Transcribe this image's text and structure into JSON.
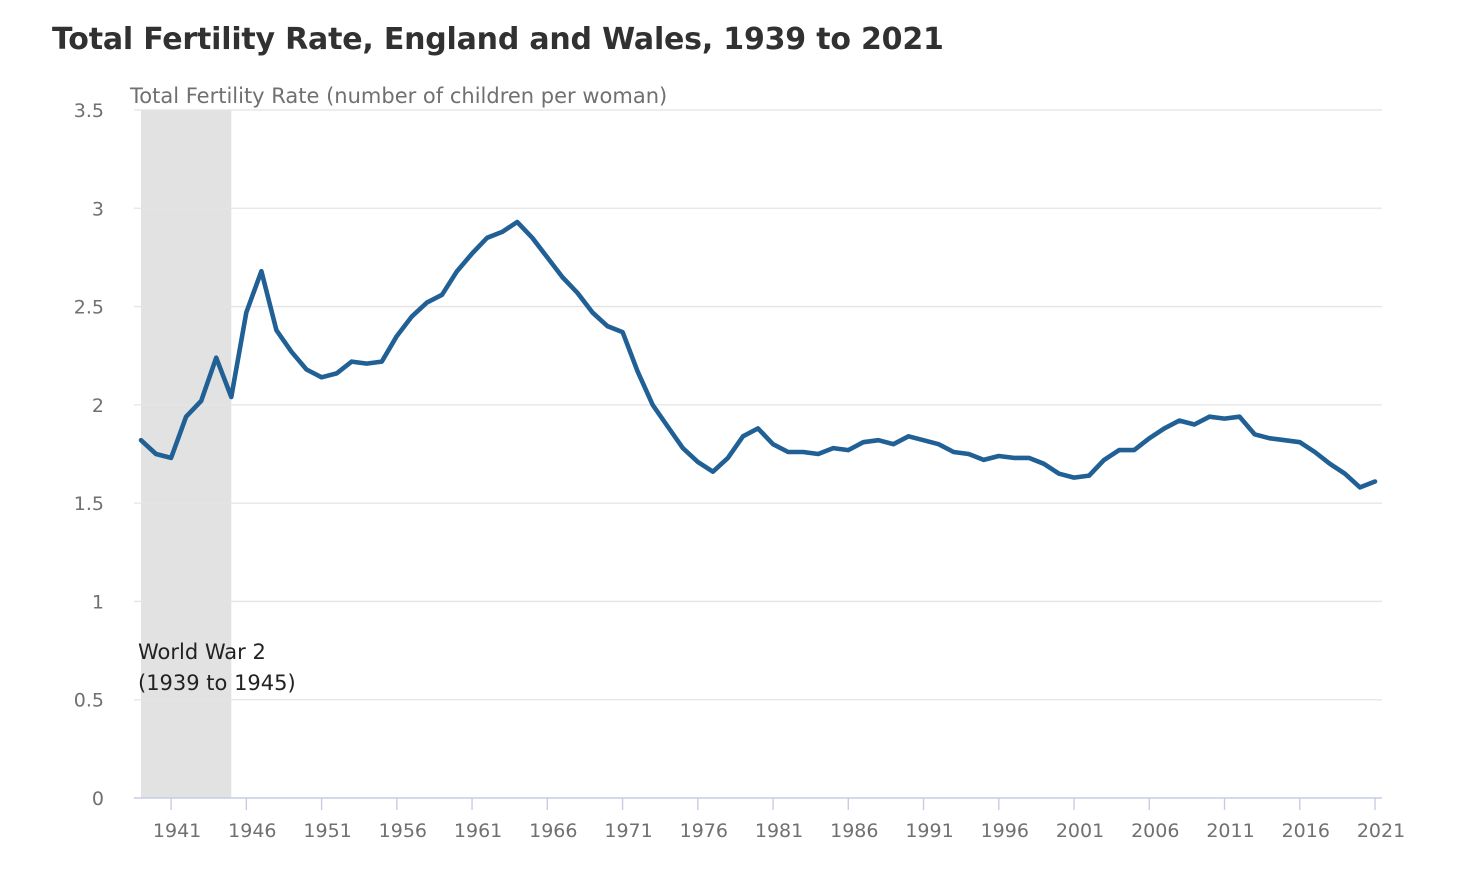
{
  "title": "Total Fertility Rate, England and Wales, 1939 to 2021",
  "chart_data": {
    "type": "line",
    "title": "Total Fertility Rate, England and Wales, 1939 to 2021",
    "ylabel": "Total Fertility Rate (number of children per woman)",
    "xlabel": "",
    "ylim": [
      0,
      3.5
    ],
    "xlim": [
      1939,
      2021
    ],
    "yticks": [
      "0",
      "0.5",
      "1",
      "1.5",
      "2",
      "2.5",
      "3",
      "3.5"
    ],
    "xticks": [
      "1941",
      "1946",
      "1951",
      "1956",
      "1961",
      "1966",
      "1971",
      "1976",
      "1981",
      "1986",
      "1991",
      "1996",
      "2001",
      "2006",
      "2011",
      "2016",
      "2021"
    ],
    "grid": true,
    "legend": "none",
    "line_color": "#206095",
    "shade_color": "#e2e2e3",
    "shaded_region": {
      "x_start": 1939,
      "x_end": 1945,
      "label_line1": "World War 2",
      "label_line2": "(1939 to 1945)"
    },
    "series": [
      {
        "x": [
          1939,
          1940,
          1941,
          1942,
          1943,
          1944,
          1945,
          1946,
          1947,
          1948,
          1949,
          1950,
          1951,
          1952,
          1953,
          1954,
          1955,
          1956,
          1957,
          1958,
          1959,
          1960,
          1961,
          1962,
          1963,
          1964,
          1965,
          1966,
          1967,
          1968,
          1969,
          1970,
          1971,
          1972,
          1973,
          1974,
          1975,
          1976,
          1977,
          1978,
          1979,
          1980,
          1981,
          1982,
          1983,
          1984,
          1985,
          1986,
          1987,
          1988,
          1989,
          1990,
          1991,
          1992,
          1993,
          1994,
          1995,
          1996,
          1997,
          1998,
          1999,
          2000,
          2001,
          2002,
          2003,
          2004,
          2005,
          2006,
          2007,
          2008,
          2009,
          2010,
          2011,
          2012,
          2013,
          2014,
          2015,
          2016,
          2017,
          2018,
          2019,
          2020,
          2021
        ],
        "values": [
          1.82,
          1.75,
          1.73,
          1.94,
          2.02,
          2.24,
          2.04,
          2.47,
          2.68,
          2.38,
          2.27,
          2.18,
          2.14,
          2.16,
          2.22,
          2.21,
          2.22,
          2.35,
          2.45,
          2.52,
          2.56,
          2.68,
          2.77,
          2.85,
          2.88,
          2.93,
          2.85,
          2.75,
          2.65,
          2.57,
          2.47,
          2.4,
          2.37,
          2.17,
          2.0,
          1.89,
          1.78,
          1.71,
          1.66,
          1.73,
          1.84,
          1.88,
          1.8,
          1.76,
          1.76,
          1.75,
          1.78,
          1.77,
          1.81,
          1.82,
          1.8,
          1.84,
          1.82,
          1.8,
          1.76,
          1.75,
          1.72,
          1.74,
          1.73,
          1.73,
          1.7,
          1.65,
          1.63,
          1.64,
          1.72,
          1.77,
          1.77,
          1.83,
          1.88,
          1.92,
          1.9,
          1.94,
          1.93,
          1.94,
          1.85,
          1.83,
          1.82,
          1.81,
          1.76,
          1.7,
          1.65,
          1.58,
          1.61
        ]
      }
    ]
  }
}
